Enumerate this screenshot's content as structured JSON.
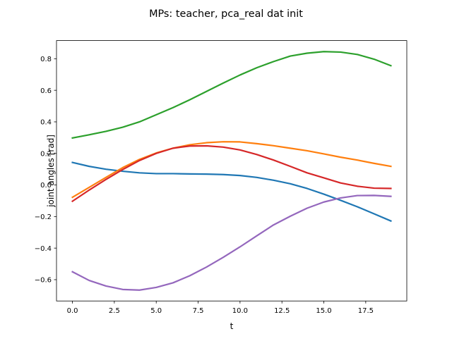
{
  "chart_data": {
    "type": "line",
    "title": "MPs: teacher, pca_real dat init",
    "xlabel": "t",
    "ylabel": "joint angles [rad]",
    "xlim": [
      -0.95,
      19.95
    ],
    "ylim": [
      -0.735,
      0.915
    ],
    "x": [
      0,
      1,
      2,
      3,
      4,
      5,
      6,
      7,
      8,
      9,
      10,
      11,
      12,
      13,
      14,
      15,
      16,
      17,
      18,
      19
    ],
    "xticks": [
      0.0,
      2.5,
      5.0,
      7.5,
      10.0,
      12.5,
      15.0,
      17.5
    ],
    "xtick_labels": [
      "0.0",
      "2.5",
      "5.0",
      "7.5",
      "10.0",
      "12.5",
      "15.0",
      "17.5"
    ],
    "yticks": [
      -0.6,
      -0.4,
      -0.2,
      0.0,
      0.2,
      0.4,
      0.6,
      0.8
    ],
    "ytick_labels": [
      "−0.6",
      "−0.4",
      "−0.2",
      "0.0",
      "0.2",
      "0.4",
      "0.6",
      "0.8"
    ],
    "grid": false,
    "legend": "none",
    "series": [
      {
        "color": "#1f77b4",
        "values": [
          0.143,
          0.118,
          0.1,
          0.087,
          0.077,
          0.072,
          0.072,
          0.07,
          0.069,
          0.066,
          0.06,
          0.048,
          0.03,
          0.008,
          -0.022,
          -0.058,
          -0.097,
          -0.138,
          -0.183,
          -0.228
        ]
      },
      {
        "color": "#ff7f0e",
        "values": [
          -0.078,
          -0.015,
          0.048,
          0.11,
          0.162,
          0.203,
          0.233,
          0.255,
          0.268,
          0.274,
          0.273,
          0.262,
          0.249,
          0.233,
          0.217,
          0.197,
          0.176,
          0.158,
          0.137,
          0.118
        ]
      },
      {
        "color": "#2ca02c",
        "values": [
          0.298,
          0.318,
          0.34,
          0.366,
          0.4,
          0.445,
          0.49,
          0.54,
          0.593,
          0.646,
          0.697,
          0.743,
          0.782,
          0.817,
          0.835,
          0.845,
          0.842,
          0.827,
          0.797,
          0.756
        ]
      },
      {
        "color": "#d62728",
        "values": [
          -0.103,
          -0.032,
          0.035,
          0.098,
          0.155,
          0.2,
          0.233,
          0.247,
          0.248,
          0.24,
          0.222,
          0.193,
          0.158,
          0.118,
          0.077,
          0.045,
          0.013,
          -0.008,
          -0.02,
          -0.022
        ]
      },
      {
        "color": "#9467bd",
        "values": [
          -0.55,
          -0.605,
          -0.64,
          -0.662,
          -0.666,
          -0.649,
          -0.62,
          -0.575,
          -0.52,
          -0.458,
          -0.392,
          -0.322,
          -0.253,
          -0.198,
          -0.147,
          -0.108,
          -0.082,
          -0.067,
          -0.066,
          -0.072
        ]
      }
    ]
  }
}
